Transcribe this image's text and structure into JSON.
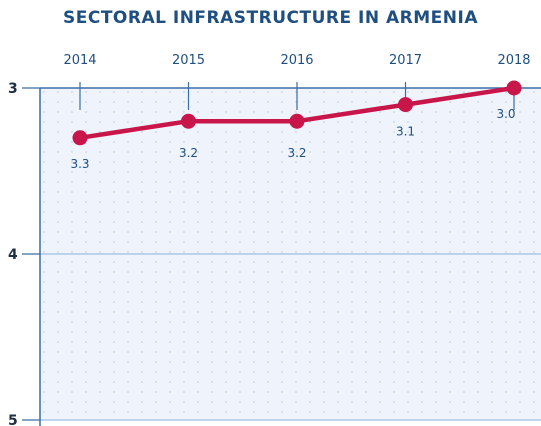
{
  "title": "SECTORAL INFRASTRUCTURE IN ARMENIA",
  "colors": {
    "line": "#c8154a",
    "axis": "#3a6ea5",
    "plot_bg": "#eef3fc",
    "grid_dots": "#b9c8de",
    "title": "#1f4f80"
  },
  "chart_data": {
    "type": "line",
    "title": "SECTORAL INFRASTRUCTURE IN ARMENIA",
    "xlabel": "",
    "ylabel": "",
    "x": [
      "2014",
      "2015",
      "2016",
      "2017",
      "2018"
    ],
    "series": [
      {
        "values": [
          3.3,
          3.2,
          3.2,
          3.1,
          3.0
        ]
      }
    ],
    "data_labels": [
      "3.3",
      "3.2",
      "3.2",
      "3.1",
      "3.0"
    ],
    "y_ticks": [
      "3",
      "4",
      "5"
    ],
    "ylim": [
      3,
      5
    ],
    "y_inverted": true,
    "x_axis_position": "top",
    "grid": true
  }
}
